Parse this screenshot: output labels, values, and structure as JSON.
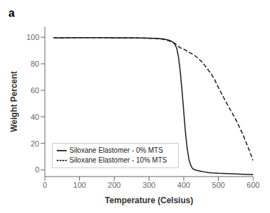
{
  "chart_data": {
    "type": "line",
    "title": "a",
    "xlabel": "Temperature (Celsius)",
    "ylabel": "Weight Percent",
    "xlim": [
      0,
      600
    ],
    "ylim": [
      -5,
      108
    ],
    "xticks": [
      0,
      100,
      200,
      300,
      400,
      500,
      600
    ],
    "yticks": [
      0,
      20,
      40,
      60,
      80,
      100
    ],
    "grid": false,
    "legend": "lower left",
    "series": [
      {
        "name": "Siloxane Elastomer - 0% MTS",
        "color": "#1a1a1a",
        "line_style": "solid",
        "x": [
          25,
          50,
          100,
          150,
          200,
          250,
          300,
          320,
          340,
          355,
          365,
          370,
          375,
          380,
          385,
          390,
          395,
          400,
          405,
          410,
          415,
          420,
          425,
          430,
          440,
          450,
          460,
          470,
          480,
          490,
          500,
          550,
          600
        ],
        "values": [
          99.5,
          99.6,
          99.7,
          99.7,
          99.6,
          99.5,
          99.3,
          99.1,
          98.8,
          98.0,
          97.0,
          96.0,
          94.5,
          91.5,
          85.0,
          74.0,
          60.0,
          44.0,
          28.0,
          16.0,
          8.0,
          3.5,
          1.2,
          0.3,
          -0.5,
          -1.0,
          -1.5,
          -2.0,
          -2.2,
          -2.3,
          -2.5,
          -3.0,
          -3.5
        ]
      },
      {
        "name": "Siloxane Elastomer - 10% MTS",
        "color": "#1a1a1a",
        "line_style": "dashed",
        "x": [
          25,
          50,
          100,
          150,
          200,
          250,
          300,
          320,
          340,
          355,
          360,
          365,
          370,
          375,
          380,
          385,
          390,
          395,
          400,
          410,
          420,
          430,
          440,
          450,
          460,
          470,
          480,
          490,
          500,
          520,
          550,
          570,
          590,
          600
        ],
        "values": [
          99.5,
          99.6,
          99.7,
          99.7,
          99.6,
          99.5,
          99.3,
          99.0,
          98.5,
          97.5,
          97.0,
          96.5,
          96.0,
          95.2,
          94.2,
          93.0,
          92.0,
          91.5,
          91.0,
          89.5,
          88.0,
          86.5,
          84.5,
          82.0,
          79.0,
          75.5,
          72.0,
          67.5,
          62.0,
          52.0,
          38.0,
          27.0,
          14.0,
          7.0
        ]
      }
    ]
  }
}
